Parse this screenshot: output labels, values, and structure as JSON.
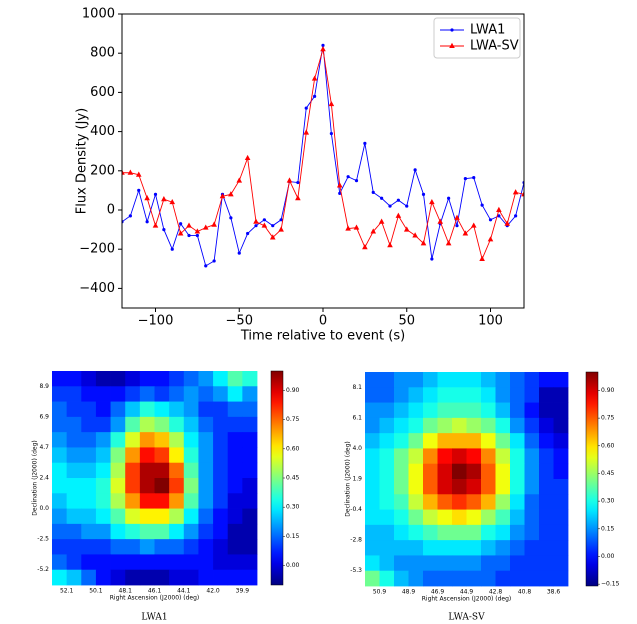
{
  "chart_data": [
    {
      "type": "line",
      "xlabel": "Time relative to event (s)",
      "ylabel": "Flux Density (Jy)",
      "x": [
        -120,
        -115,
        -110,
        -105,
        -100,
        -95,
        -90,
        -85,
        -80,
        -75,
        -70,
        -65,
        -60,
        -55,
        -50,
        -45,
        -40,
        -35,
        -30,
        -25,
        -20,
        -15,
        -10,
        -5,
        0,
        5,
        10,
        15,
        20,
        25,
        30,
        35,
        40,
        45,
        50,
        55,
        60,
        65,
        70,
        75,
        80,
        85,
        90,
        95,
        100,
        105,
        110,
        115,
        120
      ],
      "series": [
        {
          "name": "LWA1",
          "color": "#0000ff",
          "marker": "dot",
          "values": [
            -60,
            -30,
            100,
            -60,
            80,
            -100,
            -200,
            -70,
            -130,
            -130,
            -285,
            -260,
            80,
            -40,
            -220,
            -120,
            -80,
            -50,
            -80,
            -50,
            145,
            140,
            520,
            580,
            840,
            390,
            85,
            170,
            150,
            340,
            90,
            60,
            20,
            50,
            20,
            205,
            80,
            -250,
            -70,
            60,
            -80,
            160,
            165,
            25,
            -50,
            -30,
            -80,
            -30,
            140
          ]
        },
        {
          "name": "LWA-SV",
          "color": "#ff0000",
          "marker": "triangle",
          "values": [
            190,
            190,
            180,
            60,
            -80,
            55,
            40,
            -120,
            -80,
            -110,
            -90,
            -75,
            70,
            80,
            150,
            265,
            -60,
            -80,
            -140,
            -100,
            150,
            60,
            395,
            670,
            820,
            540,
            125,
            -95,
            -90,
            -190,
            -110,
            -60,
            -180,
            -30,
            -100,
            -130,
            -170,
            40,
            -60,
            -170,
            -40,
            -120,
            -80,
            -250,
            -150,
            0,
            -70,
            90,
            80
          ]
        }
      ],
      "xlim": [
        -120,
        120
      ],
      "xticks": [
        {
          "value": -100,
          "label": "−100"
        },
        {
          "value": -50,
          "label": "−50"
        },
        0,
        50,
        100
      ],
      "ylim": [
        -500,
        1000
      ],
      "yticks": [
        {
          "value": -400,
          "label": "−400"
        },
        {
          "value": -200,
          "label": "−200"
        },
        0,
        200,
        400,
        600,
        800,
        1000
      ],
      "legend": "upper right"
    },
    {
      "type": "heatmap",
      "caption": "LWA1",
      "xlabel": "Right Ascension (J2000) (deg)",
      "ylabel": "Declination (J2000) (deg)",
      "colormap": "jet",
      "clim": [
        -0.1,
        1.0
      ],
      "x_tick_labels": [
        "52.1",
        "50.1",
        "48.1",
        "46.1",
        "44.1",
        "42.0",
        "39.9"
      ],
      "y_tick_labels": [
        "8.9",
        "6.9",
        "4.7",
        "2.4",
        "0.0",
        "-2.5",
        "-5.2"
      ],
      "cticks": [
        {
          "value": 0.9,
          "label": "0.90"
        },
        {
          "value": 0.75,
          "label": "0.75"
        },
        {
          "value": 0.6,
          "label": "0.60"
        },
        {
          "value": 0.45,
          "label": "0.45"
        },
        {
          "value": 0.3,
          "label": "0.30"
        },
        {
          "value": 0.15,
          "label": "0.15"
        },
        {
          "value": 0,
          "label": "0.00"
        }
      ],
      "z": [
        [
          0.05,
          0.05,
          0,
          -0.05,
          -0.05,
          0,
          0.05,
          0.05,
          0.1,
          0.15,
          0.2,
          0.3,
          0.4,
          0.35
        ],
        [
          0.1,
          0.1,
          0.05,
          0.05,
          0.05,
          0.1,
          0.15,
          0.1,
          0.15,
          0.2,
          0.15,
          0.2,
          0.3,
          0.2
        ],
        [
          0.15,
          0.1,
          0.1,
          0.05,
          0.15,
          0.25,
          0.35,
          0.3,
          0.25,
          0.2,
          0.1,
          0.1,
          0.15,
          0.15
        ],
        [
          0.15,
          0.15,
          0.1,
          0.1,
          0.2,
          0.4,
          0.5,
          0.45,
          0.35,
          0.25,
          0.15,
          0.1,
          0.1,
          0.1
        ],
        [
          0.2,
          0.15,
          0.15,
          0.2,
          0.35,
          0.55,
          0.7,
          0.65,
          0.5,
          0.3,
          0.2,
          0.1,
          0.05,
          0.05
        ],
        [
          0.25,
          0.2,
          0.2,
          0.25,
          0.45,
          0.7,
          0.85,
          0.8,
          0.6,
          0.35,
          0.2,
          0.1,
          0.05,
          0.05
        ],
        [
          0.3,
          0.25,
          0.25,
          0.3,
          0.5,
          0.8,
          0.95,
          0.95,
          0.75,
          0.4,
          0.2,
          0.1,
          0.05,
          0.05
        ],
        [
          0.3,
          0.3,
          0.3,
          0.35,
          0.55,
          0.8,
          0.95,
          1.0,
          0.8,
          0.45,
          0.2,
          0.1,
          0.05,
          0
        ],
        [
          0.25,
          0.3,
          0.3,
          0.35,
          0.5,
          0.7,
          0.85,
          0.85,
          0.7,
          0.4,
          0.2,
          0.1,
          0,
          0
        ],
        [
          0.2,
          0.25,
          0.25,
          0.3,
          0.4,
          0.55,
          0.6,
          0.6,
          0.5,
          0.3,
          0.15,
          0.05,
          0,
          -0.05
        ],
        [
          0.15,
          0.15,
          0.2,
          0.2,
          0.3,
          0.35,
          0.4,
          0.4,
          0.3,
          0.2,
          0.1,
          0.05,
          -0.05,
          -0.05
        ],
        [
          0.1,
          0.1,
          0.1,
          0.1,
          0.15,
          0.15,
          0.2,
          0.15,
          0.15,
          0.1,
          0.05,
          0,
          -0.05,
          -0.05
        ],
        [
          0.15,
          0.1,
          0.05,
          0.05,
          0.05,
          0.05,
          0.05,
          0.05,
          0.05,
          0.05,
          0.05,
          0,
          0,
          0
        ],
        [
          0.3,
          0.25,
          0.15,
          0.05,
          0,
          -0.05,
          -0.05,
          -0.05,
          0,
          0,
          0.05,
          0.05,
          0.05,
          0.05
        ]
      ]
    },
    {
      "type": "heatmap",
      "caption": "LWA-SV",
      "xlabel": "Right Ascension (J2000) (deg)",
      "ylabel": "Declination (J2000) (deg)",
      "colormap": "jet",
      "clim": [
        -0.16,
        1.0
      ],
      "x_tick_labels": [
        "50.9",
        "48.9",
        "46.9",
        "44.9",
        "42.8",
        "40.8",
        "38.6"
      ],
      "y_tick_labels": [
        "8.1",
        "6.1",
        "4.0",
        "1.9",
        "-0.4",
        "-2.8",
        "-5.3"
      ],
      "cticks": [
        {
          "value": 0.9,
          "label": "0.90"
        },
        {
          "value": 0.75,
          "label": "0.75"
        },
        {
          "value": 0.6,
          "label": "0.60"
        },
        {
          "value": 0.45,
          "label": "0.45"
        },
        {
          "value": 0.3,
          "label": "0.30"
        },
        {
          "value": 0.15,
          "label": "0.15"
        },
        {
          "value": 0,
          "label": "0.00"
        },
        {
          "value": -0.15,
          "label": "−0.15"
        }
      ],
      "z": [
        [
          0.1,
          0.1,
          0.15,
          0.15,
          0.2,
          0.25,
          0.25,
          0.25,
          0.2,
          0.15,
          0.1,
          0.05,
          0,
          0
        ],
        [
          0.1,
          0.1,
          0.15,
          0.2,
          0.25,
          0.3,
          0.3,
          0.3,
          0.25,
          0.15,
          0.1,
          0.05,
          -0.1,
          -0.1
        ],
        [
          0.15,
          0.15,
          0.2,
          0.25,
          0.3,
          0.35,
          0.35,
          0.35,
          0.3,
          0.2,
          0.1,
          0,
          -0.1,
          -0.1
        ],
        [
          0.15,
          0.2,
          0.25,
          0.3,
          0.4,
          0.45,
          0.5,
          0.45,
          0.4,
          0.3,
          0.15,
          0.05,
          -0.05,
          -0.1
        ],
        [
          0.2,
          0.25,
          0.3,
          0.4,
          0.55,
          0.65,
          0.65,
          0.65,
          0.55,
          0.4,
          0.25,
          0.1,
          0,
          -0.05
        ],
        [
          0.25,
          0.3,
          0.4,
          0.5,
          0.7,
          0.85,
          0.9,
          0.85,
          0.7,
          0.5,
          0.3,
          0.15,
          0.05,
          0
        ],
        [
          0.25,
          0.3,
          0.4,
          0.55,
          0.75,
          0.9,
          1.0,
          0.95,
          0.75,
          0.55,
          0.3,
          0.15,
          0.05,
          0
        ],
        [
          0.25,
          0.3,
          0.4,
          0.55,
          0.75,
          0.9,
          0.95,
          0.9,
          0.75,
          0.55,
          0.3,
          0.15,
          0.05,
          0.05
        ],
        [
          0.25,
          0.3,
          0.35,
          0.5,
          0.65,
          0.75,
          0.8,
          0.75,
          0.65,
          0.45,
          0.25,
          0.1,
          0.05,
          0.05
        ],
        [
          0.25,
          0.25,
          0.3,
          0.4,
          0.5,
          0.55,
          0.6,
          0.55,
          0.45,
          0.35,
          0.2,
          0.1,
          0.05,
          0.05
        ],
        [
          0.2,
          0.2,
          0.25,
          0.3,
          0.35,
          0.4,
          0.4,
          0.4,
          0.3,
          0.25,
          0.15,
          0.1,
          0.05,
          0.05
        ],
        [
          0.2,
          0.2,
          0.2,
          0.2,
          0.25,
          0.25,
          0.25,
          0.25,
          0.2,
          0.15,
          0.1,
          0.05,
          0.05,
          0.05
        ],
        [
          0.25,
          0.2,
          0.15,
          0.15,
          0.15,
          0.15,
          0.15,
          0.15,
          0.1,
          0.1,
          0.05,
          0.05,
          0.05,
          0.05
        ],
        [
          0.4,
          0.3,
          0.2,
          0.15,
          0.1,
          0.1,
          0.1,
          0.1,
          0.1,
          0.05,
          0.05,
          0.05,
          0.05,
          0.05
        ]
      ]
    }
  ]
}
